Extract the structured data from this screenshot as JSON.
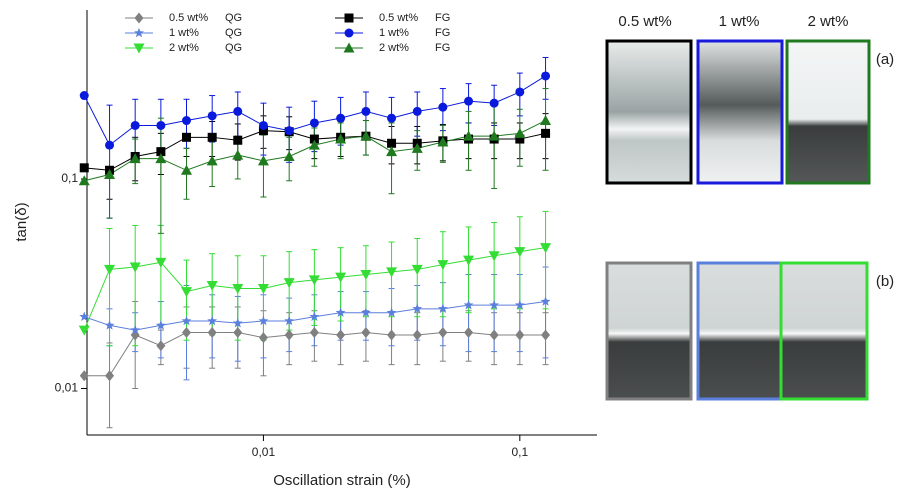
{
  "chart_data": {
    "type": "line",
    "xlabel": "Oscillation strain (%)",
    "ylabel": "tan(δ)",
    "xscale": "log",
    "yscale": "log",
    "xlim": [
      0.00205,
      0.2
    ],
    "ylim": [
      0.006,
      0.64
    ],
    "xticks": [
      {
        "value": 0.01,
        "label": "0,01"
      },
      {
        "value": 0.1,
        "label": "0,1"
      }
    ],
    "yticks": [
      {
        "value": 0.01,
        "label": "0,01"
      },
      {
        "value": 0.1,
        "label": "0,1"
      }
    ],
    "x": [
      0.002,
      0.00251,
      0.00316,
      0.00398,
      0.00501,
      0.00631,
      0.00794,
      0.01,
      0.0126,
      0.0158,
      0.02,
      0.0251,
      0.0316,
      0.0398,
      0.0501,
      0.0631,
      0.0794,
      0.1,
      0.126
    ],
    "series": [
      {
        "name": "0.5 wt%",
        "group": "QG",
        "color": "#808080",
        "marker": "diamond",
        "values": [
          0.0115,
          0.0115,
          0.018,
          0.016,
          0.0185,
          0.0185,
          0.0185,
          0.0175,
          0.018,
          0.0185,
          0.018,
          0.0185,
          0.018,
          0.018,
          0.0185,
          0.0185,
          0.018,
          0.018,
          0.018
        ],
        "errors": [
          0,
          0.005,
          0.008,
          0.003,
          0.006,
          0.006,
          0.006,
          0.006,
          0.005,
          0.005,
          0.005,
          0.005,
          0.005,
          0.005,
          0.005,
          0.005,
          0.005,
          0.005,
          0.005
        ]
      },
      {
        "name": "1 wt%",
        "group": "QG",
        "color": "#5b7fdc",
        "marker": "star",
        "values": [
          0.022,
          0.02,
          0.019,
          0.02,
          0.021,
          0.021,
          0.0205,
          0.021,
          0.021,
          0.022,
          0.023,
          0.023,
          0.023,
          0.024,
          0.024,
          0.025,
          0.025,
          0.025,
          0.026
        ],
        "errors": [
          0,
          0.004,
          0.004,
          0.006,
          0.01,
          0.007,
          0.007,
          0.007,
          0.006,
          0.006,
          0.006,
          0.006,
          0.007,
          0.007,
          0.008,
          0.01,
          0.01,
          0.01,
          0.012
        ]
      },
      {
        "name": "2 wt%",
        "group": "QG",
        "color": "#33dd33",
        "marker": "tri-down",
        "values": [
          0.019,
          0.037,
          0.038,
          0.04,
          0.029,
          0.031,
          0.03,
          0.03,
          0.032,
          0.033,
          0.034,
          0.035,
          0.036,
          0.037,
          0.039,
          0.041,
          0.043,
          0.045,
          0.047
        ],
        "errors": [
          0,
          0.021,
          0.022,
          0.02,
          0.012,
          0.013,
          0.013,
          0.013,
          0.013,
          0.013,
          0.013,
          0.013,
          0.014,
          0.015,
          0.017,
          0.018,
          0.019,
          0.021,
          0.023
        ]
      },
      {
        "name": "0.5 wt%",
        "group": "FG",
        "color": "#000000",
        "marker": "square",
        "values": [
          0.113,
          0.11,
          0.128,
          0.135,
          0.158,
          0.158,
          0.153,
          0.17,
          0.168,
          0.155,
          0.158,
          0.16,
          0.148,
          0.148,
          0.152,
          0.155,
          0.155,
          0.155,
          0.165
        ],
        "errors": [
          0,
          0.03,
          0.03,
          0.03,
          0.03,
          0.03,
          0.03,
          0.03,
          0.03,
          0.03,
          0.03,
          0.03,
          0.03,
          0.03,
          0.03,
          0.03,
          0.03,
          0.03,
          0.04
        ]
      },
      {
        "name": "1 wt%",
        "group": "FG",
        "color": "#0a1adc",
        "marker": "circle",
        "values": [
          0.25,
          0.145,
          0.18,
          0.18,
          0.19,
          0.2,
          0.21,
          0.18,
          0.17,
          0.185,
          0.195,
          0.21,
          0.195,
          0.21,
          0.22,
          0.235,
          0.23,
          0.26,
          0.31
        ],
        "errors": [
          0,
          0.08,
          0.06,
          0.06,
          0.05,
          0.05,
          0.05,
          0.05,
          0.05,
          0.05,
          0.05,
          0.05,
          0.05,
          0.05,
          0.05,
          0.05,
          0.05,
          0.06,
          0.07
        ]
      },
      {
        "name": "2 wt%",
        "group": "FG",
        "color": "#1f7a1f",
        "marker": "tri-up",
        "values": [
          0.098,
          0.105,
          0.125,
          0.125,
          0.11,
          0.122,
          0.13,
          0.122,
          0.128,
          0.145,
          0.155,
          0.16,
          0.135,
          0.14,
          0.15,
          0.16,
          0.16,
          0.165,
          0.19
        ],
        "errors": [
          0,
          0.04,
          0.03,
          0.07,
          0.03,
          0.03,
          0.03,
          0.04,
          0.03,
          0.03,
          0.03,
          0.03,
          0.05,
          0.03,
          0.03,
          0.05,
          0.07,
          0.05,
          0.08
        ]
      }
    ]
  },
  "photos": {
    "columns": [
      "0.5 wt%",
      "1 wt%",
      "2 wt%"
    ],
    "rows": [
      "(a)",
      "(b)"
    ]
  }
}
